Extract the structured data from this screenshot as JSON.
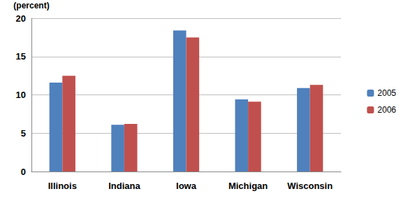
{
  "chart_data": {
    "type": "bar",
    "y_label": "(percent)",
    "categories": [
      "Illinois",
      "Indiana",
      "Iowa",
      "Michigan",
      "Wisconsin"
    ],
    "series": [
      {
        "name": "2005",
        "color": "#4f81bd",
        "values": [
          11.6,
          6.1,
          18.4,
          9.4,
          10.9
        ]
      },
      {
        "name": "2006",
        "color": "#c0504d",
        "values": [
          12.5,
          6.2,
          17.5,
          9.1,
          11.3
        ]
      }
    ],
    "ylim": [
      0,
      20
    ],
    "yticks": [
      0,
      5,
      10,
      15,
      20
    ],
    "grid": true,
    "legend": "right"
  }
}
